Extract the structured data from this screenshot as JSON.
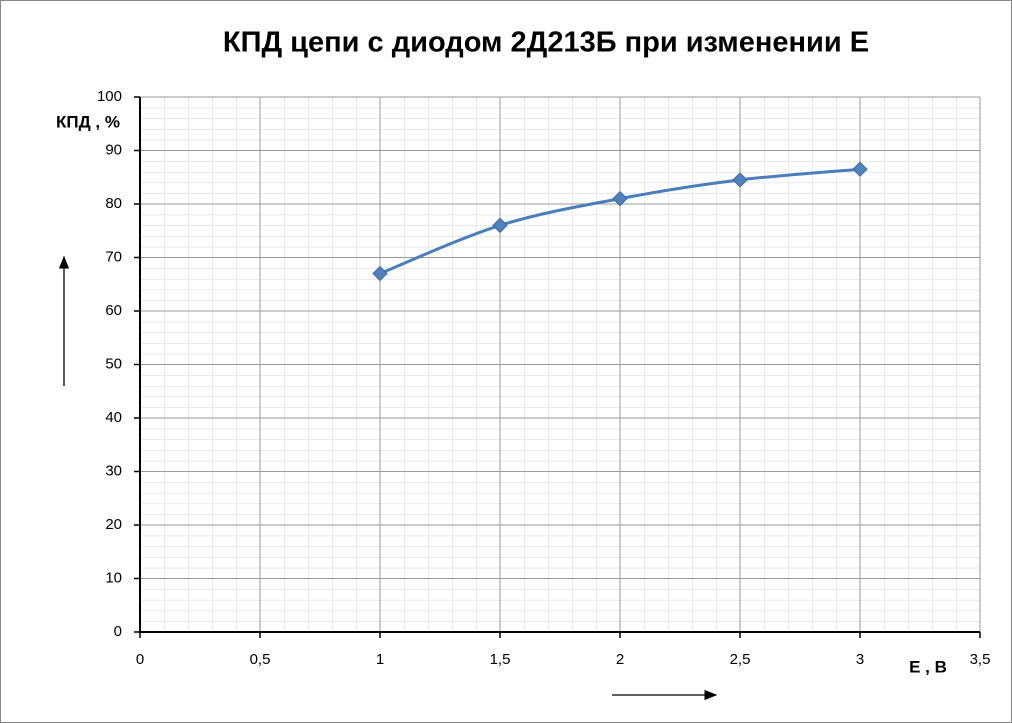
{
  "chart_data": {
    "type": "line",
    "title": "КПД цепи с диодом 2Д213Б при изменении Е",
    "x_label": "Е , В",
    "y_label": "КПД , %",
    "x": [
      1,
      1.5,
      2,
      2.5,
      3
    ],
    "series": [
      {
        "name": "КПД",
        "color": "#4a7ebb",
        "values": [
          67,
          76,
          81,
          84.5,
          86.5
        ]
      }
    ],
    "xlim": [
      0,
      3.5
    ],
    "xticks": [
      0,
      {
        "value": 0.5,
        "label": "0,5"
      },
      1,
      {
        "value": 1.5,
        "label": "1,5"
      },
      2,
      {
        "value": 2.5,
        "label": "2,5"
      },
      3,
      {
        "value": 3.5,
        "label": "3,5"
      }
    ],
    "ylim": [
      0,
      100
    ],
    "yticks": [
      0,
      10,
      20,
      30,
      40,
      50,
      60,
      70,
      80,
      90,
      100
    ],
    "grid": true
  }
}
